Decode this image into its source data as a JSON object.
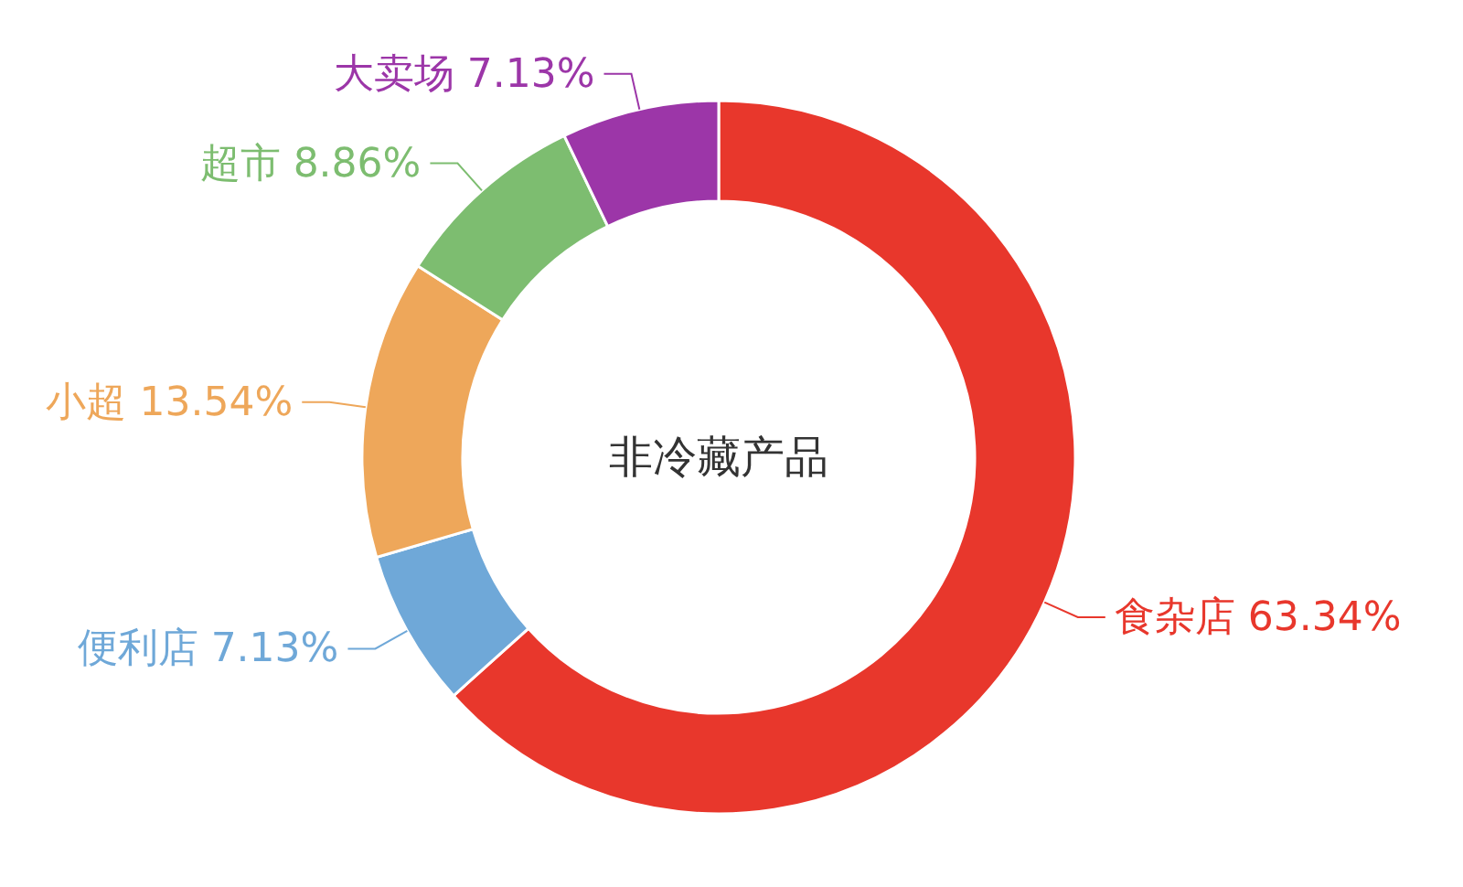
{
  "chart_data": {
    "type": "donut",
    "title": "非冷藏产品",
    "categories": [
      "食杂店",
      "便利店",
      "小超",
      "超市",
      "大卖场"
    ],
    "values": [
      63.34,
      7.13,
      13.54,
      8.86,
      7.13
    ],
    "value_labels": [
      "63.34%",
      "7.13%",
      "13.54%",
      "8.86%",
      "7.13%"
    ],
    "colors": [
      "#e8372c",
      "#6fa8d8",
      "#eea75a",
      "#7dbd70",
      "#9c36a8"
    ]
  }
}
